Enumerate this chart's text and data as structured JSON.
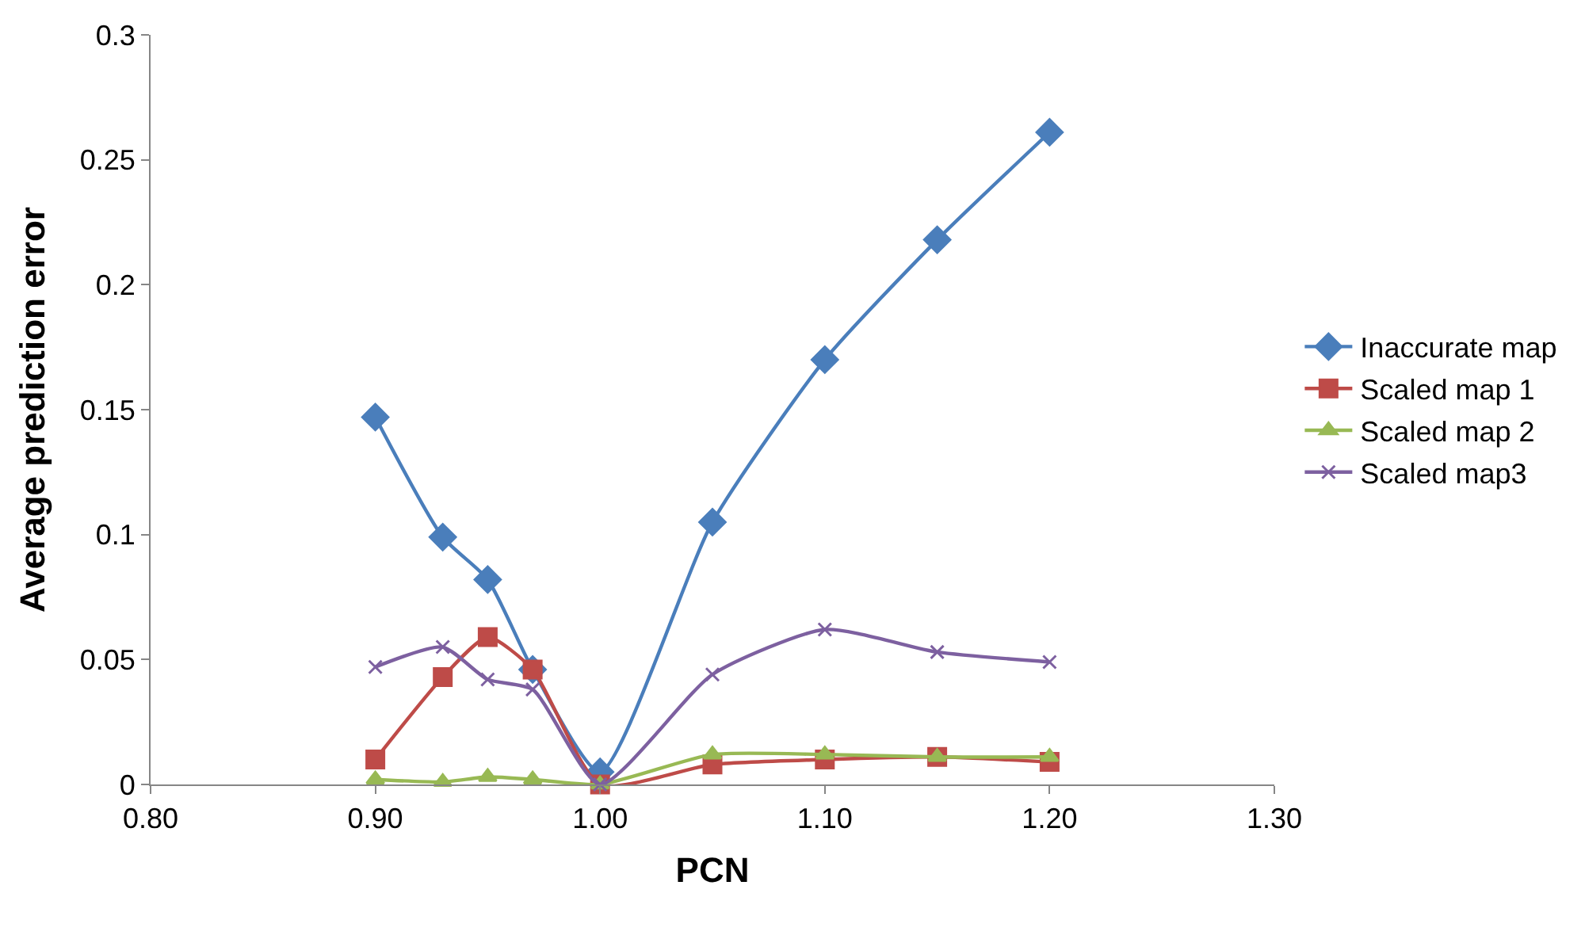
{
  "chart_data": {
    "type": "line",
    "xlabel": "PCN",
    "ylabel": "Average prediction error",
    "x": [
      0.9,
      0.93,
      0.95,
      0.97,
      1.0,
      1.05,
      1.1,
      1.15,
      1.2
    ],
    "xlim": [
      0.8,
      1.3
    ],
    "xticks": [
      {
        "value": 0.8,
        "label": "0.80"
      },
      {
        "value": 0.9,
        "label": "0.90"
      },
      {
        "value": 1.0,
        "label": "1.00"
      },
      {
        "value": 1.1,
        "label": "1.10"
      },
      {
        "value": 1.2,
        "label": "1.20"
      },
      {
        "value": 1.3,
        "label": "1.30"
      }
    ],
    "ylim": [
      0,
      0.3
    ],
    "yticks": [
      0,
      0.05,
      0.1,
      0.15,
      0.2,
      0.25,
      0.3
    ],
    "grid": false,
    "legend": "right",
    "series": [
      {
        "name": "Inaccurate map",
        "color": "#4a7ebb",
        "marker": "diamond",
        "values": [
          0.147,
          0.099,
          0.082,
          0.046,
          0.005,
          0.105,
          0.17,
          0.218,
          0.261
        ]
      },
      {
        "name": "Scaled map 1",
        "color": "#be4b48",
        "marker": "square",
        "values": [
          0.01,
          0.043,
          0.059,
          0.046,
          0.0,
          0.008,
          0.01,
          0.011,
          0.009
        ]
      },
      {
        "name": "Scaled map 2",
        "color": "#98b954",
        "marker": "triangle",
        "values": [
          0.002,
          0.001,
          0.003,
          0.002,
          0.0,
          0.012,
          0.012,
          0.011,
          0.011
        ]
      },
      {
        "name": "Scaled map3",
        "color": "#7d60a0",
        "marker": "cross",
        "values": [
          0.047,
          0.055,
          0.042,
          0.038,
          0.0,
          0.044,
          0.062,
          0.053,
          0.049
        ]
      }
    ]
  }
}
